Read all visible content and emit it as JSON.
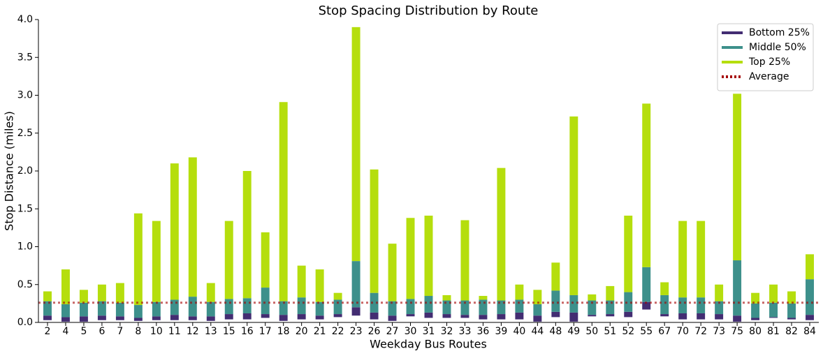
{
  "chart_data": {
    "type": "floating_stacked_bar",
    "title": "Stop Spacing Distribution by Route",
    "x_label": "Weekday Bus Routes",
    "y_label": "Stop Distance (miles)",
    "categories": [
      "2",
      "4",
      "5",
      "6",
      "7",
      "8",
      "10",
      "11",
      "12",
      "13",
      "15",
      "16",
      "17",
      "18",
      "20",
      "21",
      "22",
      "23",
      "26",
      "27",
      "30",
      "31",
      "32",
      "33",
      "36",
      "39",
      "40",
      "44",
      "48",
      "49",
      "50",
      "51",
      "52",
      "55",
      "67",
      "70",
      "72",
      "73",
      "75",
      "80",
      "81",
      "82",
      "84"
    ],
    "start": [
      0.03,
      0.01,
      0.01,
      0.03,
      0.03,
      0.02,
      0.03,
      0.03,
      0.03,
      0.02,
      0.04,
      0.04,
      0.06,
      0.02,
      0.04,
      0.04,
      0.07,
      0.09,
      0.04,
      0.02,
      0.08,
      0.06,
      0.06,
      0.06,
      0.04,
      0.04,
      0.04,
      0.01,
      0.07,
      0.01,
      0.08,
      0.08,
      0.07,
      0.17,
      0.08,
      0.04,
      0.04,
      0.04,
      0.01,
      0.03,
      0.06,
      0.04,
      0.03
    ],
    "series": [
      {
        "name": "Bottom 25%",
        "color": "#432d72",
        "values": [
          0.06,
          0.06,
          0.07,
          0.06,
          0.05,
          0.04,
          0.05,
          0.07,
          0.05,
          0.06,
          0.07,
          0.08,
          0.05,
          0.08,
          0.07,
          0.05,
          0.04,
          0.11,
          0.09,
          0.07,
          0.03,
          0.07,
          0.05,
          0.04,
          0.06,
          0.07,
          0.09,
          0.08,
          0.07,
          0.12,
          0.02,
          0.03,
          0.07,
          0.1,
          0.03,
          0.08,
          0.08,
          0.07,
          0.08,
          0.03,
          0.01,
          0.02,
          0.07
        ]
      },
      {
        "name": "Middle 50%",
        "color": "#3d908b",
        "values": [
          0.19,
          0.17,
          0.18,
          0.19,
          0.18,
          0.17,
          0.19,
          0.2,
          0.26,
          0.19,
          0.2,
          0.2,
          0.35,
          0.18,
          0.22,
          0.18,
          0.19,
          0.61,
          0.26,
          0.19,
          0.2,
          0.22,
          0.18,
          0.19,
          0.2,
          0.18,
          0.17,
          0.15,
          0.28,
          0.23,
          0.19,
          0.18,
          0.26,
          0.46,
          0.25,
          0.21,
          0.21,
          0.17,
          0.73,
          0.19,
          0.19,
          0.19,
          0.47
        ]
      },
      {
        "name": "Top 25%",
        "color": "#b5de0d",
        "values": [
          0.13,
          0.46,
          0.17,
          0.22,
          0.26,
          1.21,
          1.07,
          1.8,
          1.84,
          0.25,
          1.03,
          1.68,
          0.73,
          2.63,
          0.42,
          0.43,
          0.09,
          3.09,
          1.63,
          0.76,
          1.07,
          1.06,
          0.07,
          1.06,
          0.05,
          1.75,
          0.2,
          0.19,
          0.37,
          2.36,
          0.08,
          0.19,
          1.01,
          2.16,
          0.17,
          1.01,
          1.01,
          0.22,
          2.2,
          0.14,
          0.24,
          0.16,
          0.33
        ]
      }
    ],
    "reference_line": {
      "name": "Average",
      "value": 0.26,
      "color": "#a50000"
    },
    "ylim": [
      0,
      4.0
    ],
    "yticks": [
      {
        "value": 0,
        "label": "0.0"
      },
      0.5,
      {
        "value": 1,
        "label": "1.0"
      },
      1.5,
      {
        "value": 2,
        "label": "2.0"
      },
      2.5,
      {
        "value": 3,
        "label": "3.0"
      },
      3.5,
      {
        "value": 4,
        "label": "4.0"
      }
    ],
    "legend": "upper right"
  }
}
